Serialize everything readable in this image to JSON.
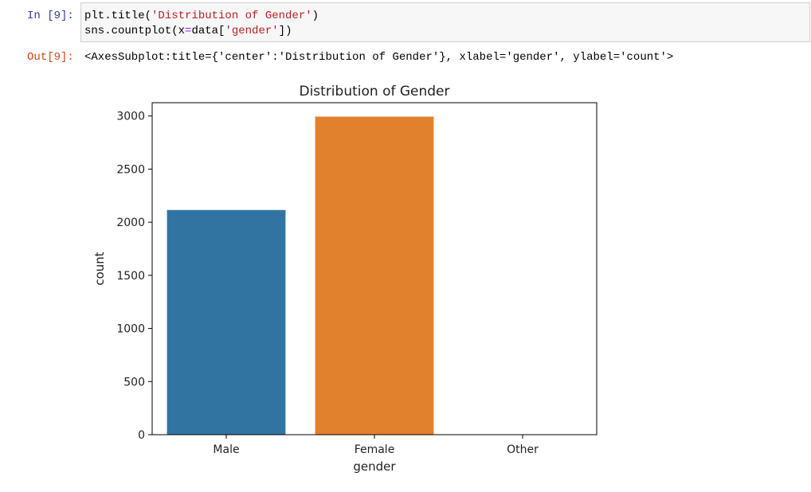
{
  "cell_in": {
    "prompt": "In [9]:",
    "code": [
      [
        {
          "t": "plt.title(",
          "c": ""
        },
        {
          "t": "'Distribution of Gender'",
          "c": "str"
        },
        {
          "t": ")",
          "c": ""
        }
      ],
      [
        {
          "t": "sns.countplot(x",
          "c": ""
        },
        {
          "t": "=",
          "c": "op"
        },
        {
          "t": "data[",
          "c": ""
        },
        {
          "t": "'gender'",
          "c": "str"
        },
        {
          "t": "])",
          "c": ""
        }
      ]
    ]
  },
  "cell_out": {
    "prompt": "Out[9]:",
    "text": "<AxesSubplot:title={'center':'Distribution of Gender'}, xlabel='gender', ylabel='count'>"
  },
  "chart_data": {
    "type": "bar",
    "title": "Distribution of Gender",
    "xlabel": "gender",
    "ylabel": "count",
    "categories": [
      "Male",
      "Female",
      "Other"
    ],
    "values": [
      2115,
      2994,
      1
    ],
    "colors": [
      "#3274a1",
      "#e1812c",
      "#3a923a"
    ],
    "ylim": [
      0,
      3125
    ],
    "yticks": [
      0,
      500,
      1000,
      1500,
      2000,
      2500,
      3000
    ],
    "grid": false
  }
}
